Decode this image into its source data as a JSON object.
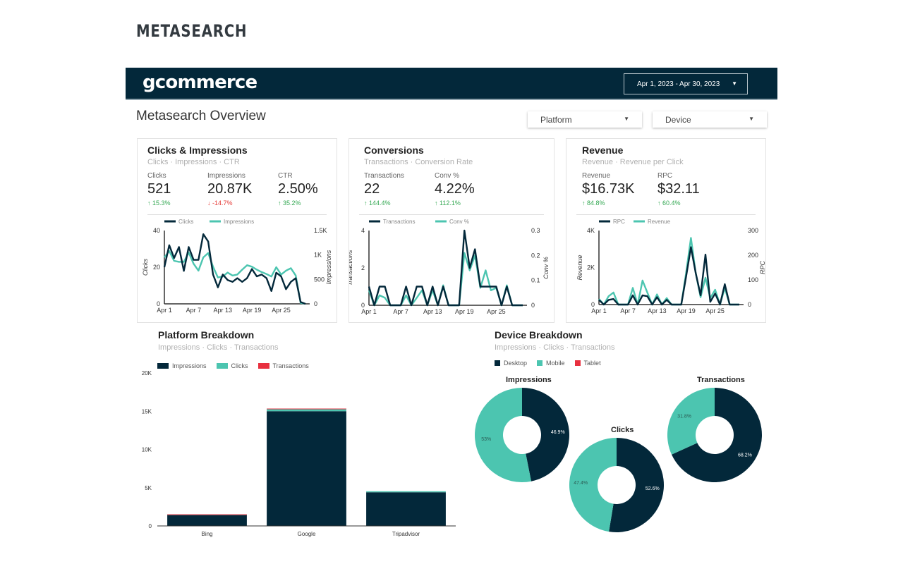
{
  "brand": "METASEARCH",
  "header": {
    "logo": "gcommerce",
    "date_range": "Apr 1, 2023 - Apr 30, 2023",
    "date_caret_icon": "caret-down-icon"
  },
  "page_title": "Metasearch Overview",
  "filters": [
    {
      "label": "Platform"
    },
    {
      "label": "Device"
    }
  ],
  "colors": {
    "navy": "#03283a",
    "teal": "#4cc5b0",
    "red": "#e8303f",
    "up": "#34a853",
    "down": "#e53935"
  },
  "cards": [
    {
      "title": "Clicks & Impressions",
      "subtitle": "Clicks · Impressions · CTR",
      "kpis": [
        {
          "label": "Clicks",
          "value": "521",
          "delta": "15.3%",
          "dir": "up"
        },
        {
          "label": "Impressions",
          "value": "20.87K",
          "delta": "-14.7%",
          "dir": "down"
        },
        {
          "label": "CTR",
          "value": "2.50%",
          "delta": "35.2%",
          "dir": "up"
        }
      ]
    },
    {
      "title": "Conversions",
      "subtitle": "Transactions · Conversion Rate",
      "kpis": [
        {
          "label": "Transactions",
          "value": "22",
          "delta": "144.4%",
          "dir": "up"
        },
        {
          "label": "Conv %",
          "value": "4.22%",
          "delta": "112.1%",
          "dir": "up"
        }
      ]
    },
    {
      "title": "Revenue",
      "subtitle": "Revenue · Revenue per Click",
      "kpis": [
        {
          "label": "Revenue",
          "value": "$16.73K",
          "delta": "84.8%",
          "dir": "up"
        },
        {
          "label": "RPC",
          "value": "$32.11",
          "delta": "60.4%",
          "dir": "up"
        }
      ]
    }
  ],
  "chart_data": [
    {
      "type": "line",
      "x_ticks": [
        "Apr 1",
        "Apr 7",
        "Apr 13",
        "Apr 19",
        "Apr 25"
      ],
      "left_axis": {
        "label": "Clicks",
        "ticks": [
          "0",
          "20",
          "40"
        ],
        "range": [
          0,
          40
        ]
      },
      "right_axis": {
        "label": "Impressions",
        "ticks": [
          "0",
          "500",
          "1K",
          "1.5K"
        ],
        "range": [
          0,
          1500
        ]
      },
      "series": [
        {
          "name": "Clicks",
          "axis": "left",
          "color": "#03283a",
          "values": [
            20,
            32,
            25,
            31,
            18,
            31,
            24,
            24,
            38,
            34,
            16,
            9,
            16,
            13,
            12,
            14,
            12,
            14,
            19,
            15,
            16,
            14,
            7,
            17,
            15,
            8,
            12,
            14,
            1,
            0
          ]
        },
        {
          "name": "Impressions",
          "axis": "right",
          "color": "#4cc5b0",
          "values": [
            950,
            1080,
            880,
            860,
            860,
            1050,
            820,
            680,
            950,
            1040,
            760,
            540,
            560,
            640,
            580,
            600,
            700,
            790,
            760,
            700,
            650,
            610,
            560,
            750,
            600,
            680,
            730,
            580,
            20,
            0
          ]
        }
      ]
    },
    {
      "type": "line",
      "x_ticks": [
        "Apr 1",
        "Apr 7",
        "Apr 13",
        "Apr 19",
        "Apr 25"
      ],
      "left_axis": {
        "label": "Transactions",
        "ticks": [
          "0",
          "2",
          "4"
        ],
        "range": [
          0,
          4
        ]
      },
      "right_axis": {
        "label": "Conv %",
        "ticks": [
          "0",
          "0.1",
          "0.2",
          "0.3"
        ],
        "range": [
          0,
          0.3
        ]
      },
      "series": [
        {
          "name": "Transactions",
          "axis": "left",
          "color": "#03283a",
          "values": [
            1,
            0,
            1,
            1,
            0,
            0,
            0,
            1,
            0,
            1,
            1,
            0,
            1,
            0,
            1,
            0,
            0,
            0,
            4,
            2,
            3,
            1,
            1,
            1,
            1,
            0,
            1,
            0,
            0,
            0
          ]
        },
        {
          "name": "Conv %",
          "axis": "right",
          "color": "#4cc5b0",
          "values": [
            0.06,
            0,
            0.04,
            0.03,
            0,
            0,
            0,
            0.04,
            0,
            0.03,
            0.06,
            0,
            0.06,
            0,
            0.08,
            0,
            0,
            0,
            0.21,
            0.14,
            0.2,
            0.07,
            0.14,
            0.06,
            0.07,
            0,
            0.08,
            0,
            0,
            0
          ]
        }
      ]
    },
    {
      "type": "line",
      "x_ticks": [
        "Apr 1",
        "Apr 7",
        "Apr 13",
        "Apr 19",
        "Apr 25"
      ],
      "left_axis": {
        "label": "Revenue",
        "ticks": [
          "0",
          "2K",
          "4K"
        ],
        "range": [
          0,
          4000
        ]
      },
      "right_axis": {
        "label": "RPC",
        "ticks": [
          "0",
          "100",
          "200",
          "300"
        ],
        "range": [
          0,
          300
        ]
      },
      "series": [
        {
          "name": "RPC",
          "axis": "left",
          "color": "#03283a",
          "values": [
            250,
            0,
            250,
            300,
            0,
            0,
            0,
            500,
            0,
            500,
            450,
            0,
            400,
            0,
            250,
            0,
            0,
            0,
            1500,
            3100,
            1700,
            500,
            2700,
            150,
            600,
            0,
            1100,
            0,
            0,
            0
          ]
        },
        {
          "name": "Revenue",
          "axis": "left",
          "color": "#4cc5b0",
          "values": [
            300,
            0,
            450,
            650,
            0,
            0,
            0,
            900,
            0,
            1300,
            650,
            0,
            550,
            0,
            350,
            0,
            0,
            0,
            1700,
            3600,
            1700,
            400,
            1450,
            350,
            800,
            0,
            900,
            0,
            0,
            0
          ]
        }
      ]
    },
    {
      "type": "bar",
      "title": "Platform Breakdown",
      "subtitle": "Impressions · Clicks · Transactions",
      "categories": [
        "Bing",
        "Google",
        "Tripadvisor"
      ],
      "y_ticks": [
        "0",
        "5K",
        "10K",
        "15K",
        "20K"
      ],
      "ylim": [
        0,
        20000
      ],
      "series": [
        {
          "name": "Impressions",
          "color": "#03283a",
          "values": [
            1450,
            15000,
            4400
          ]
        },
        {
          "name": "Clicks",
          "color": "#4cc5b0",
          "values": [
            50,
            340,
            130
          ]
        },
        {
          "name": "Transactions",
          "color": "#e8303f",
          "values": [
            20,
            2,
            0
          ]
        }
      ]
    },
    {
      "type": "pie",
      "title": "Device Breakdown",
      "subtitle": "Impressions · Clicks · Transactions",
      "legend": [
        {
          "name": "Desktop",
          "color": "#03283a"
        },
        {
          "name": "Mobile",
          "color": "#4cc5b0"
        },
        {
          "name": "Tablet",
          "color": "#e8303f"
        }
      ],
      "donuts": [
        {
          "title": "Impressions",
          "slices": [
            {
              "name": "Desktop",
              "value": 46.9,
              "label": "46.9%"
            },
            {
              "name": "Mobile",
              "value": 53.1,
              "label": "53%"
            }
          ]
        },
        {
          "title": "Clicks",
          "slices": [
            {
              "name": "Desktop",
              "value": 52.6,
              "label": "52.6%"
            },
            {
              "name": "Mobile",
              "value": 47.4,
              "label": "47.4%"
            }
          ]
        },
        {
          "title": "Transactions",
          "slices": [
            {
              "name": "Desktop",
              "value": 68.2,
              "label": "68.2%"
            },
            {
              "name": "Mobile",
              "value": 31.8,
              "label": "31.8%"
            }
          ]
        }
      ]
    }
  ]
}
